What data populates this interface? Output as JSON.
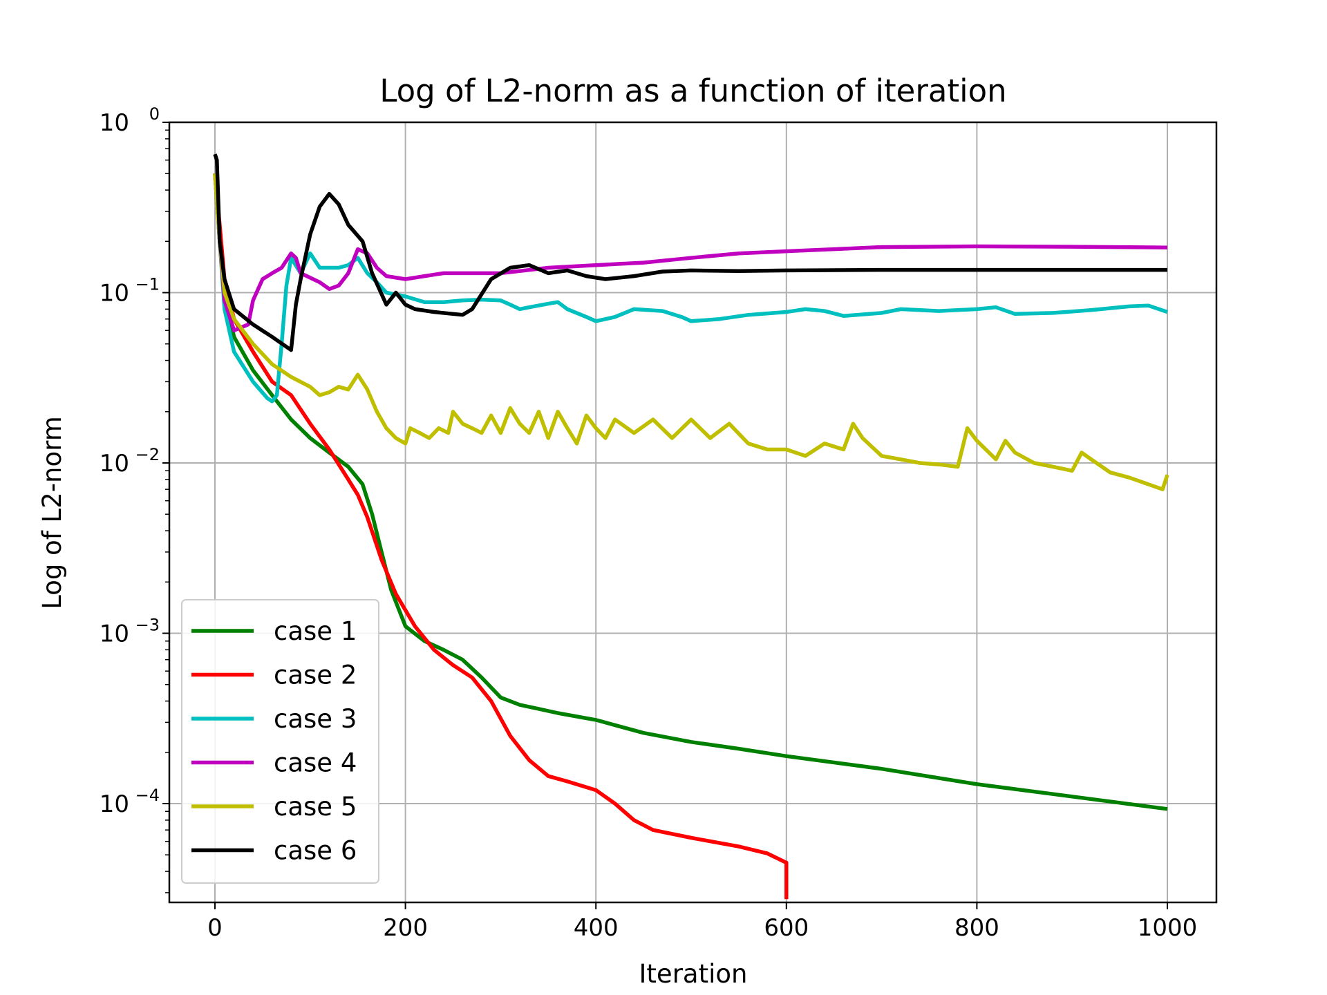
{
  "chart_data": {
    "type": "line",
    "title": "Log of L2-norm as a function of iteration",
    "xlabel": "Iteration",
    "ylabel": "Log of L2-norm",
    "xlim": [
      -50,
      1050
    ],
    "ylim": [
      2.75e-05,
      1
    ],
    "y_scale": "log",
    "grid": true,
    "legend_position": "lower-left",
    "x_ticks": [
      {
        "value": 0,
        "label": "0"
      },
      {
        "value": 200,
        "label": "200"
      },
      {
        "value": 400,
        "label": "400"
      },
      {
        "value": 600,
        "label": "600"
      },
      {
        "value": 800,
        "label": "800"
      },
      {
        "value": 1000,
        "label": "1000"
      }
    ],
    "y_ticks": [
      {
        "value": 1,
        "base": "10",
        "exp": "0"
      },
      {
        "value": 0.1,
        "base": "10",
        "exp": "−1"
      },
      {
        "value": 0.01,
        "base": "10",
        "exp": "−2"
      },
      {
        "value": 0.001,
        "base": "10",
        "exp": "−3"
      },
      {
        "value": 0.0001,
        "base": "10",
        "exp": "−4"
      }
    ],
    "series": [
      {
        "name": "case 1",
        "color": "#008000",
        "points": [
          [
            0,
            0.5
          ],
          [
            5,
            0.2
          ],
          [
            10,
            0.1
          ],
          [
            20,
            0.055
          ],
          [
            40,
            0.035
          ],
          [
            60,
            0.025
          ],
          [
            80,
            0.018
          ],
          [
            100,
            0.014
          ],
          [
            120,
            0.0115
          ],
          [
            140,
            0.0095
          ],
          [
            155,
            0.0075
          ],
          [
            165,
            0.005
          ],
          [
            175,
            0.003
          ],
          [
            185,
            0.0018
          ],
          [
            200,
            0.0011
          ],
          [
            220,
            0.0009
          ],
          [
            240,
            0.0008
          ],
          [
            260,
            0.0007
          ],
          [
            280,
            0.00055
          ],
          [
            300,
            0.00042
          ],
          [
            320,
            0.00038
          ],
          [
            340,
            0.00036
          ],
          [
            360,
            0.00034
          ],
          [
            400,
            0.00031
          ],
          [
            450,
            0.00026
          ],
          [
            500,
            0.00023
          ],
          [
            550,
            0.00021
          ],
          [
            600,
            0.00019
          ],
          [
            700,
            0.00016
          ],
          [
            800,
            0.00013
          ],
          [
            900,
            0.00011
          ],
          [
            1000,
            9.3e-05
          ]
        ]
      },
      {
        "name": "case 2",
        "color": "#ff0000",
        "points": [
          [
            0,
            0.5
          ],
          [
            5,
            0.25
          ],
          [
            10,
            0.12
          ],
          [
            20,
            0.07
          ],
          [
            40,
            0.045
          ],
          [
            60,
            0.03
          ],
          [
            80,
            0.025
          ],
          [
            100,
            0.017
          ],
          [
            120,
            0.012
          ],
          [
            140,
            0.008
          ],
          [
            150,
            0.0065
          ],
          [
            160,
            0.0048
          ],
          [
            175,
            0.0027
          ],
          [
            190,
            0.0017
          ],
          [
            210,
            0.0011
          ],
          [
            230,
            0.0008
          ],
          [
            250,
            0.00065
          ],
          [
            270,
            0.00055
          ],
          [
            290,
            0.0004
          ],
          [
            310,
            0.00025
          ],
          [
            330,
            0.00018
          ],
          [
            350,
            0.000145
          ],
          [
            370,
            0.000135
          ],
          [
            400,
            0.00012
          ],
          [
            420,
            0.0001
          ],
          [
            440,
            8e-05
          ],
          [
            460,
            7e-05
          ],
          [
            500,
            6.3e-05
          ],
          [
            550,
            5.6e-05
          ],
          [
            580,
            5.1e-05
          ],
          [
            600,
            4.5e-05
          ],
          [
            600,
            2.75e-05
          ]
        ]
      },
      {
        "name": "case 3",
        "color": "#00bfbf",
        "points": [
          [
            0,
            0.5
          ],
          [
            5,
            0.2
          ],
          [
            10,
            0.08
          ],
          [
            20,
            0.045
          ],
          [
            40,
            0.03
          ],
          [
            55,
            0.024
          ],
          [
            60,
            0.023
          ],
          [
            65,
            0.025
          ],
          [
            70,
            0.05
          ],
          [
            75,
            0.11
          ],
          [
            80,
            0.16
          ],
          [
            90,
            0.13
          ],
          [
            100,
            0.17
          ],
          [
            110,
            0.14
          ],
          [
            130,
            0.14
          ],
          [
            140,
            0.145
          ],
          [
            150,
            0.16
          ],
          [
            160,
            0.13
          ],
          [
            170,
            0.115
          ],
          [
            180,
            0.1
          ],
          [
            200,
            0.095
          ],
          [
            220,
            0.088
          ],
          [
            240,
            0.088
          ],
          [
            260,
            0.09
          ],
          [
            280,
            0.091
          ],
          [
            300,
            0.09
          ],
          [
            310,
            0.085
          ],
          [
            320,
            0.08
          ],
          [
            330,
            0.082
          ],
          [
            350,
            0.086
          ],
          [
            360,
            0.088
          ],
          [
            370,
            0.08
          ],
          [
            390,
            0.072
          ],
          [
            400,
            0.068
          ],
          [
            420,
            0.072
          ],
          [
            440,
            0.08
          ],
          [
            470,
            0.078
          ],
          [
            490,
            0.072
          ],
          [
            500,
            0.068
          ],
          [
            530,
            0.07
          ],
          [
            560,
            0.074
          ],
          [
            600,
            0.077
          ],
          [
            620,
            0.08
          ],
          [
            640,
            0.078
          ],
          [
            660,
            0.073
          ],
          [
            700,
            0.076
          ],
          [
            720,
            0.08
          ],
          [
            760,
            0.078
          ],
          [
            800,
            0.08
          ],
          [
            820,
            0.082
          ],
          [
            840,
            0.075
          ],
          [
            880,
            0.076
          ],
          [
            920,
            0.079
          ],
          [
            960,
            0.083
          ],
          [
            980,
            0.084
          ],
          [
            1000,
            0.077
          ]
        ]
      },
      {
        "name": "case 4",
        "color": "#bf00bf",
        "points": [
          [
            0,
            0.5
          ],
          [
            5,
            0.2
          ],
          [
            10,
            0.09
          ],
          [
            20,
            0.06
          ],
          [
            35,
            0.065
          ],
          [
            40,
            0.09
          ],
          [
            50,
            0.12
          ],
          [
            60,
            0.13
          ],
          [
            70,
            0.14
          ],
          [
            80,
            0.17
          ],
          [
            85,
            0.16
          ],
          [
            90,
            0.13
          ],
          [
            110,
            0.115
          ],
          [
            120,
            0.105
          ],
          [
            130,
            0.11
          ],
          [
            140,
            0.13
          ],
          [
            150,
            0.18
          ],
          [
            160,
            0.17
          ],
          [
            170,
            0.14
          ],
          [
            180,
            0.125
          ],
          [
            200,
            0.12
          ],
          [
            220,
            0.125
          ],
          [
            240,
            0.13
          ],
          [
            300,
            0.13
          ],
          [
            350,
            0.14
          ],
          [
            400,
            0.145
          ],
          [
            450,
            0.15
          ],
          [
            500,
            0.16
          ],
          [
            550,
            0.17
          ],
          [
            600,
            0.175
          ],
          [
            650,
            0.18
          ],
          [
            700,
            0.185
          ],
          [
            800,
            0.187
          ],
          [
            900,
            0.186
          ],
          [
            1000,
            0.184
          ]
        ]
      },
      {
        "name": "case 5",
        "color": "#bfbf00",
        "points": [
          [
            0,
            0.5
          ],
          [
            5,
            0.2
          ],
          [
            10,
            0.1
          ],
          [
            20,
            0.07
          ],
          [
            40,
            0.05
          ],
          [
            60,
            0.038
          ],
          [
            80,
            0.032
          ],
          [
            100,
            0.028
          ],
          [
            110,
            0.025
          ],
          [
            120,
            0.026
          ],
          [
            130,
            0.028
          ],
          [
            140,
            0.027
          ],
          [
            150,
            0.033
          ],
          [
            160,
            0.027
          ],
          [
            170,
            0.02
          ],
          [
            180,
            0.016
          ],
          [
            190,
            0.014
          ],
          [
            200,
            0.013
          ],
          [
            205,
            0.016
          ],
          [
            215,
            0.015
          ],
          [
            225,
            0.014
          ],
          [
            235,
            0.016
          ],
          [
            245,
            0.015
          ],
          [
            250,
            0.02
          ],
          [
            260,
            0.017
          ],
          [
            270,
            0.016
          ],
          [
            280,
            0.015
          ],
          [
            290,
            0.019
          ],
          [
            300,
            0.015
          ],
          [
            310,
            0.021
          ],
          [
            320,
            0.017
          ],
          [
            330,
            0.015
          ],
          [
            340,
            0.02
          ],
          [
            350,
            0.014
          ],
          [
            360,
            0.02
          ],
          [
            370,
            0.016
          ],
          [
            380,
            0.013
          ],
          [
            390,
            0.019
          ],
          [
            400,
            0.016
          ],
          [
            410,
            0.014
          ],
          [
            420,
            0.018
          ],
          [
            440,
            0.015
          ],
          [
            460,
            0.018
          ],
          [
            480,
            0.014
          ],
          [
            500,
            0.018
          ],
          [
            520,
            0.014
          ],
          [
            540,
            0.017
          ],
          [
            560,
            0.013
          ],
          [
            580,
            0.012
          ],
          [
            600,
            0.012
          ],
          [
            620,
            0.011
          ],
          [
            640,
            0.013
          ],
          [
            660,
            0.012
          ],
          [
            670,
            0.017
          ],
          [
            680,
            0.014
          ],
          [
            700,
            0.011
          ],
          [
            720,
            0.0105
          ],
          [
            740,
            0.01
          ],
          [
            760,
            0.0098
          ],
          [
            780,
            0.0095
          ],
          [
            790,
            0.016
          ],
          [
            800,
            0.0135
          ],
          [
            820,
            0.0105
          ],
          [
            830,
            0.0135
          ],
          [
            840,
            0.0115
          ],
          [
            860,
            0.01
          ],
          [
            880,
            0.0095
          ],
          [
            900,
            0.009
          ],
          [
            910,
            0.0115
          ],
          [
            920,
            0.0105
          ],
          [
            940,
            0.0088
          ],
          [
            960,
            0.0082
          ],
          [
            980,
            0.0075
          ],
          [
            995,
            0.007
          ],
          [
            1000,
            0.0085
          ]
        ]
      },
      {
        "name": "case 6",
        "color": "#000000",
        "points": [
          [
            0,
            0.65
          ],
          [
            2,
            0.6
          ],
          [
            5,
            0.2
          ],
          [
            10,
            0.12
          ],
          [
            20,
            0.08
          ],
          [
            40,
            0.065
          ],
          [
            60,
            0.055
          ],
          [
            80,
            0.046
          ],
          [
            85,
            0.085
          ],
          [
            90,
            0.12
          ],
          [
            100,
            0.22
          ],
          [
            110,
            0.32
          ],
          [
            120,
            0.38
          ],
          [
            130,
            0.33
          ],
          [
            140,
            0.25
          ],
          [
            155,
            0.2
          ],
          [
            165,
            0.13
          ],
          [
            180,
            0.085
          ],
          [
            190,
            0.1
          ],
          [
            200,
            0.085
          ],
          [
            210,
            0.08
          ],
          [
            230,
            0.077
          ],
          [
            260,
            0.074
          ],
          [
            270,
            0.08
          ],
          [
            290,
            0.12
          ],
          [
            310,
            0.14
          ],
          [
            330,
            0.145
          ],
          [
            350,
            0.13
          ],
          [
            370,
            0.135
          ],
          [
            390,
            0.125
          ],
          [
            410,
            0.12
          ],
          [
            440,
            0.125
          ],
          [
            470,
            0.133
          ],
          [
            500,
            0.135
          ],
          [
            550,
            0.134
          ],
          [
            600,
            0.135
          ],
          [
            700,
            0.136
          ],
          [
            800,
            0.136
          ],
          [
            900,
            0.136
          ],
          [
            1000,
            0.136
          ]
        ]
      }
    ]
  }
}
